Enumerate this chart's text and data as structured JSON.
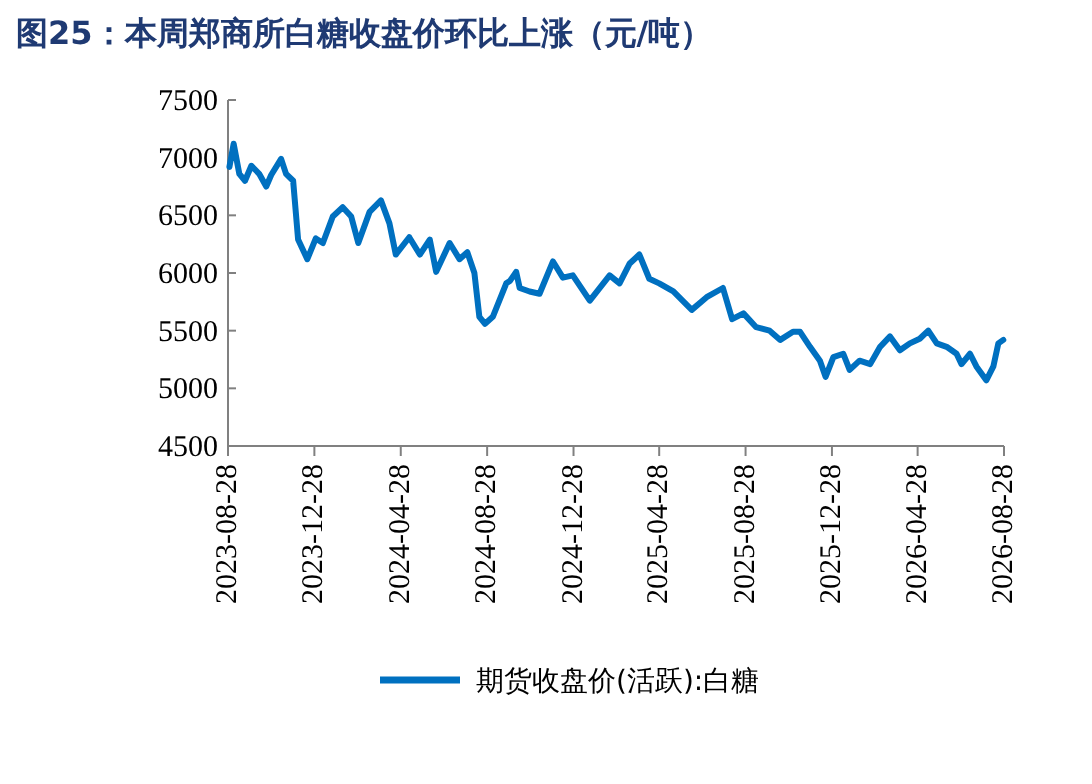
{
  "chart_data": {
    "type": "line",
    "title": "图25：本周郑商所白糖收盘价环比上涨（元/吨）",
    "legend": "bottom",
    "grid": false,
    "marker": "none",
    "line_style": "solid",
    "xlim": [
      "2023-08-28",
      "2026-08-28"
    ],
    "xticks": [
      "2023-08-28",
      "2023-12-28",
      "2024-04-28",
      "2024-08-28",
      "2024-12-28",
      "2025-04-28",
      "2025-08-28",
      "2025-12-28",
      "2026-04-28",
      "2026-08-28"
    ],
    "ylim": [
      4500,
      7500
    ],
    "yticks": [
      4500,
      5000,
      5500,
      6000,
      6500,
      7000,
      7500
    ],
    "series": [
      {
        "name": "期货收盘价(活跃):白糖",
        "color": "#0070c0",
        "x": [
          "2023-08-30",
          "2023-09-05",
          "2023-09-13",
          "2023-09-21",
          "2023-09-30",
          "2023-10-11",
          "2023-10-21",
          "2023-10-28",
          "2023-11-11",
          "2023-11-18",
          "2023-11-28",
          "2023-12-05",
          "2023-12-18",
          "2023-12-30",
          "2024-01-09",
          "2024-01-23",
          "2024-02-06",
          "2024-02-18",
          "2024-02-28",
          "2024-03-15",
          "2024-03-31",
          "2024-04-12",
          "2024-04-21",
          "2024-05-10",
          "2024-05-25",
          "2024-06-08",
          "2024-06-17",
          "2024-07-06",
          "2024-07-20",
          "2024-07-31",
          "2024-08-10",
          "2024-08-17",
          "2024-08-25",
          "2024-09-05",
          "2024-09-24",
          "2024-09-29",
          "2024-10-08",
          "2024-10-13",
          "2024-10-27",
          "2024-11-10",
          "2024-11-29",
          "2024-12-13",
          "2024-12-27",
          "2025-01-20",
          "2025-02-17",
          "2025-03-03",
          "2025-03-17",
          "2025-03-31",
          "2025-04-14",
          "2025-04-28",
          "2025-05-18",
          "2025-06-13",
          "2025-07-04",
          "2025-07-27",
          "2025-08-09",
          "2025-08-25",
          "2025-09-12",
          "2025-10-01",
          "2025-10-16",
          "2025-11-03",
          "2025-11-13",
          "2025-11-27",
          "2025-12-11",
          "2025-12-19",
          "2025-12-30",
          "2026-01-13",
          "2026-01-22",
          "2026-02-05",
          "2026-02-20",
          "2026-03-06",
          "2026-03-20",
          "2026-04-03",
          "2026-04-17",
          "2026-05-01",
          "2026-05-13",
          "2026-05-25",
          "2026-06-08",
          "2026-06-22",
          "2026-06-29",
          "2026-07-11",
          "2026-07-20",
          "2026-08-03",
          "2026-08-13",
          "2026-08-20",
          "2026-08-27"
        ],
        "values": [
          6920,
          7120,
          6860,
          6800,
          6930,
          6860,
          6750,
          6850,
          6990,
          6860,
          6800,
          6290,
          6120,
          6300,
          6260,
          6490,
          6570,
          6490,
          6260,
          6530,
          6630,
          6430,
          6160,
          6310,
          6160,
          6290,
          6010,
          6260,
          6120,
          6180,
          6000,
          5620,
          5560,
          5620,
          5910,
          5930,
          6010,
          5870,
          5840,
          5820,
          6100,
          5960,
          5980,
          5760,
          5980,
          5910,
          6080,
          6160,
          5950,
          5910,
          5840,
          5680,
          5790,
          5870,
          5600,
          5650,
          5530,
          5500,
          5420,
          5490,
          5490,
          5360,
          5240,
          5100,
          5270,
          5300,
          5160,
          5240,
          5210,
          5360,
          5450,
          5330,
          5390,
          5430,
          5500,
          5390,
          5360,
          5300,
          5210,
          5300,
          5190,
          5070,
          5190,
          5390,
          5420
        ]
      }
    ]
  }
}
